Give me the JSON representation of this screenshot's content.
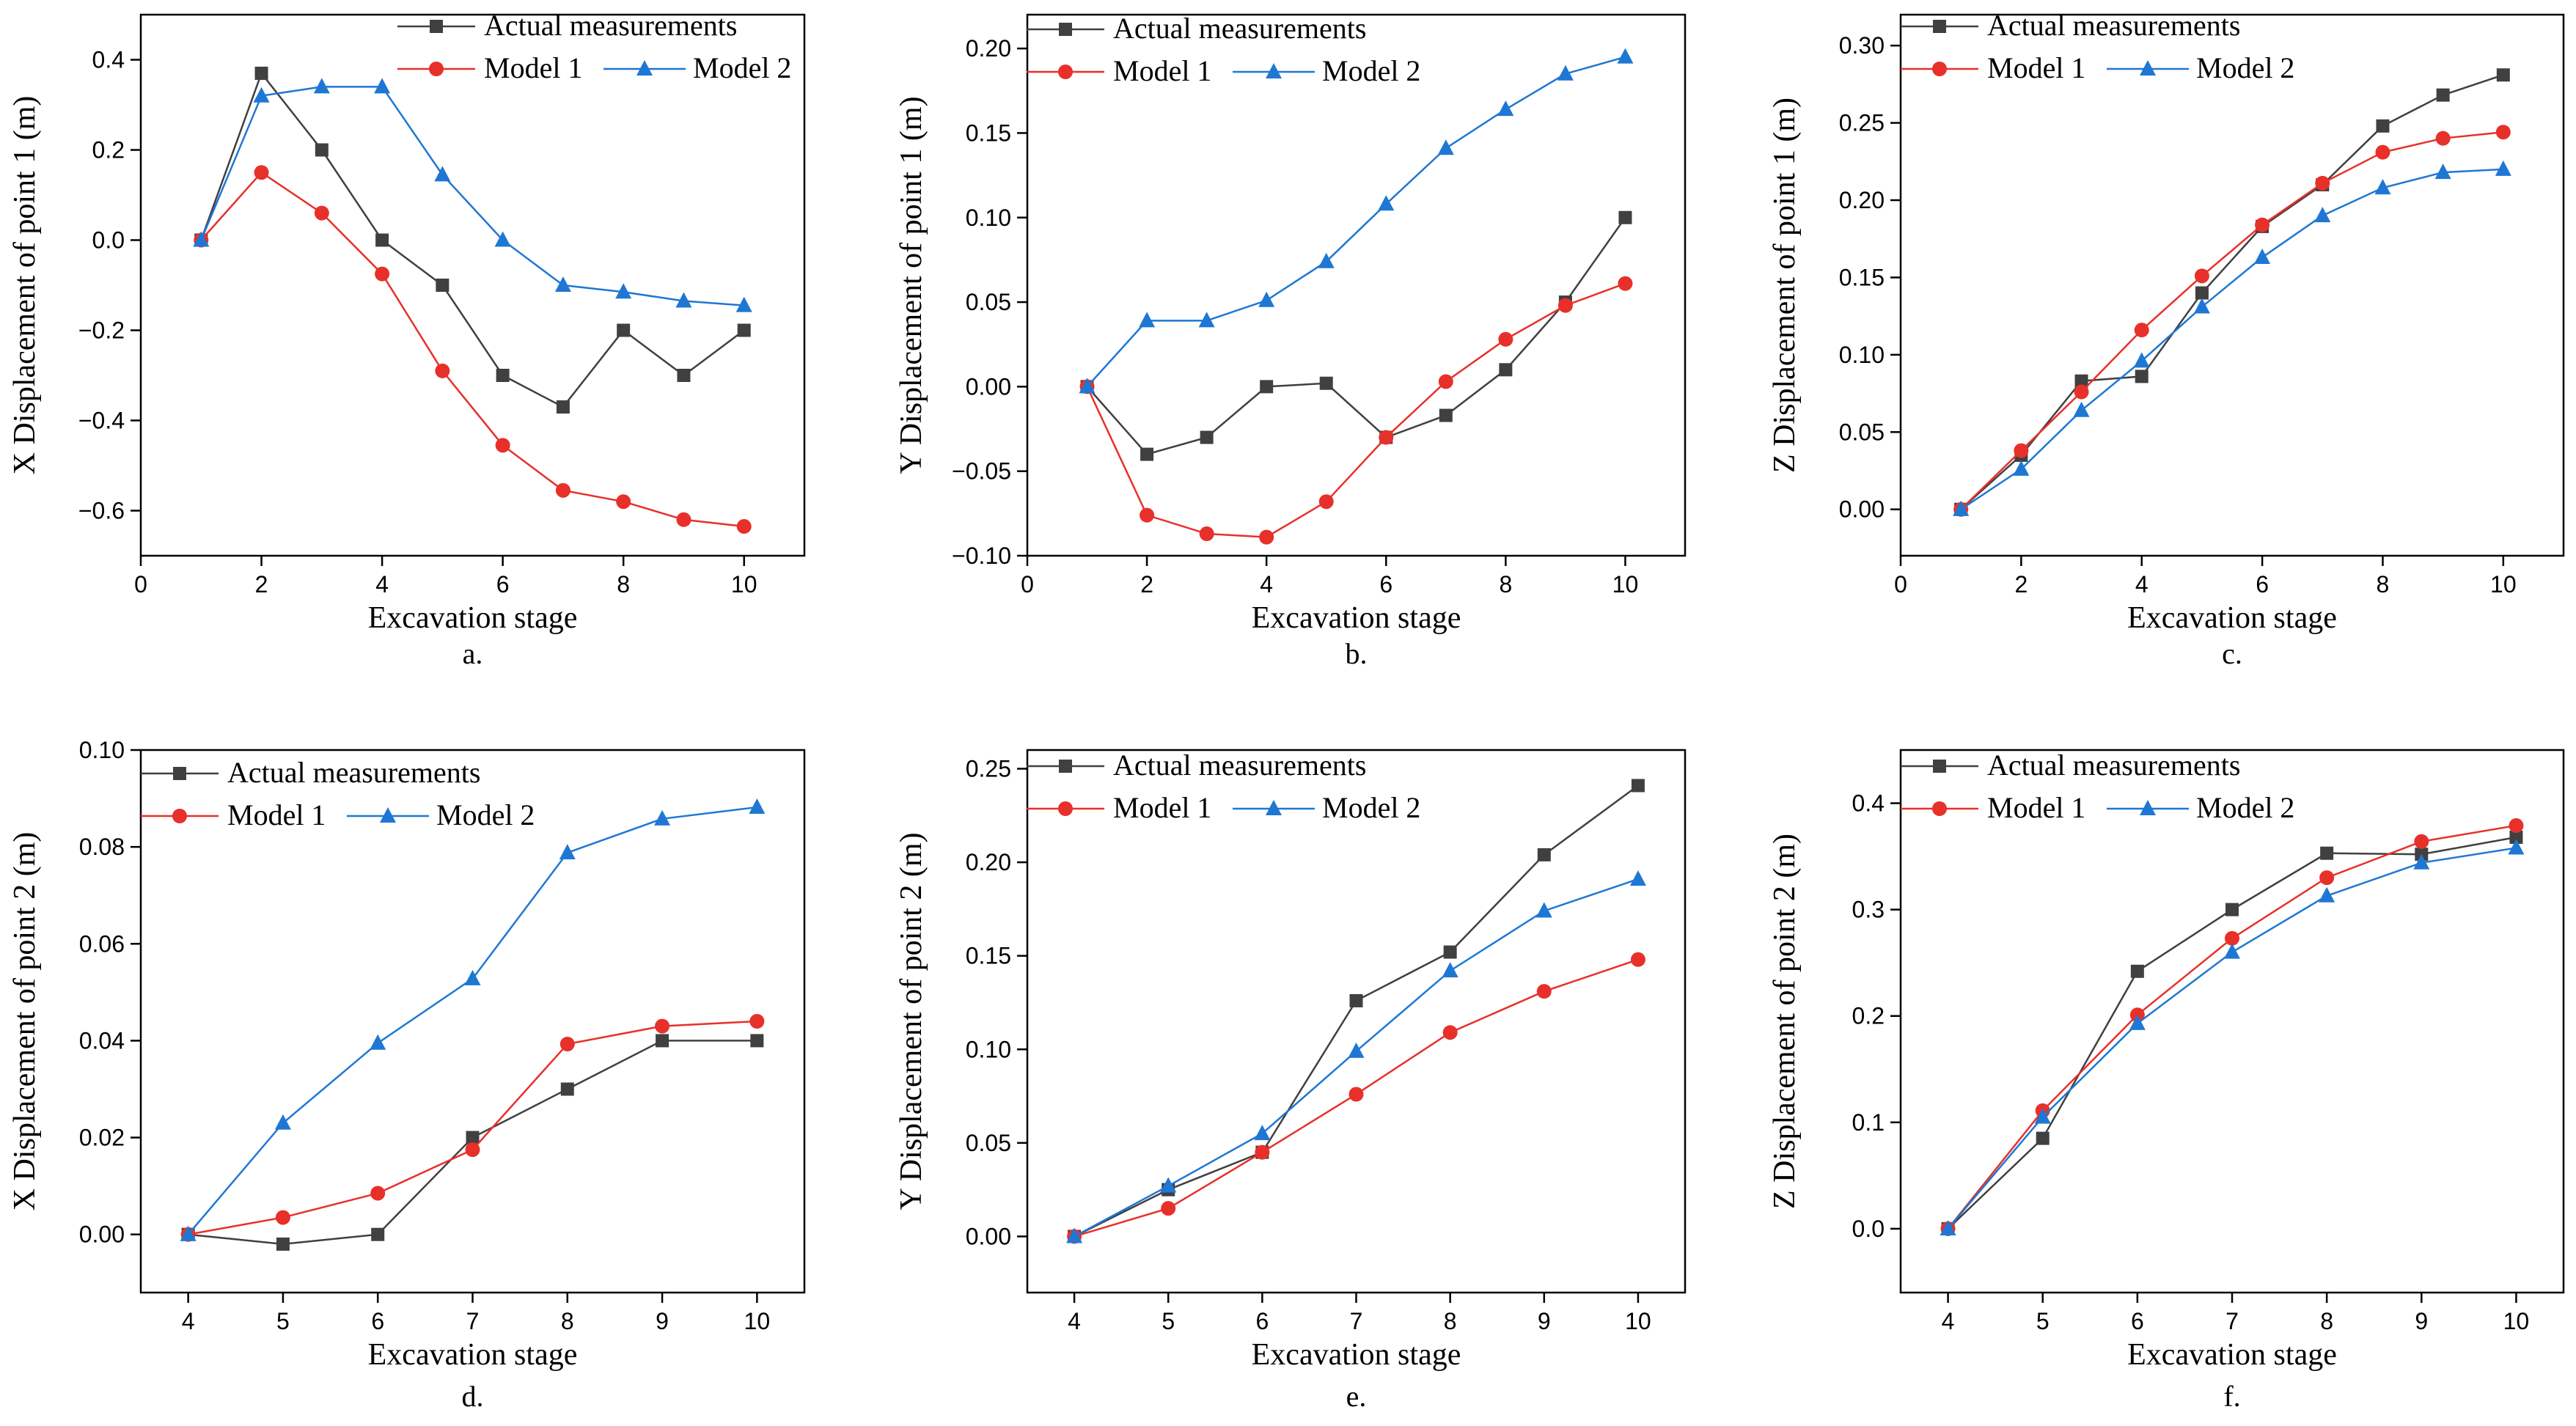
{
  "figure": {
    "panels": [
      {
        "id": "a",
        "caption": "a."
      },
      {
        "id": "b",
        "caption": "b."
      },
      {
        "id": "c",
        "caption": "c."
      },
      {
        "id": "d",
        "caption": "d."
      },
      {
        "id": "e",
        "caption": "e."
      },
      {
        "id": "f",
        "caption": "f."
      }
    ],
    "colors": {
      "actual": "#404040",
      "model1": "#e8302a",
      "model2": "#1f77d4"
    }
  },
  "chart_data": [
    {
      "type": "line",
      "xlabel": "Excavation stage",
      "ylabel": "X Displacement of point 1 (m)",
      "xlim": [
        0,
        11
      ],
      "ylim": [
        -0.7,
        0.5
      ],
      "xticks": [
        0,
        2,
        4,
        6,
        8,
        10
      ],
      "yticks": [
        -0.6,
        -0.4,
        -0.2,
        0.0,
        0.2,
        0.4
      ],
      "ytick_labels": [
        "−0.6",
        "−0.4",
        "−0.2",
        "0.0",
        "0.2",
        "0.4"
      ],
      "legend": "top-right",
      "x": [
        1,
        2,
        3,
        4,
        5,
        6,
        7,
        8,
        9,
        10
      ],
      "series": [
        {
          "name": "Actual measurements",
          "marker": "square",
          "values": [
            0.0,
            0.37,
            0.2,
            0.0,
            -0.1,
            -0.3,
            -0.37,
            -0.2,
            -0.3,
            -0.2
          ]
        },
        {
          "name": "Model 1",
          "marker": "circle",
          "values": [
            0.0,
            0.15,
            0.06,
            -0.075,
            -0.29,
            -0.455,
            -0.555,
            -0.58,
            -0.62,
            -0.635
          ]
        },
        {
          "name": "Model 2",
          "marker": "triangle",
          "values": [
            0.0,
            0.32,
            0.34,
            0.34,
            0.145,
            0.0,
            -0.1,
            -0.115,
            -0.135,
            -0.145
          ]
        }
      ]
    },
    {
      "type": "line",
      "xlabel": "Excavation stage",
      "ylabel": "Y Displacement of point 1 (m)",
      "xlim": [
        0,
        11
      ],
      "ylim": [
        -0.1,
        0.22
      ],
      "xticks": [
        0,
        2,
        4,
        6,
        8,
        10
      ],
      "yticks": [
        -0.1,
        -0.05,
        0.0,
        0.05,
        0.1,
        0.15,
        0.2
      ],
      "ytick_labels": [
        "−0.10",
        "−0.05",
        "0.00",
        "0.05",
        "0.10",
        "0.15",
        "0.20"
      ],
      "legend": "top-right",
      "x": [
        1,
        2,
        3,
        4,
        5,
        6,
        7,
        8,
        9,
        10
      ],
      "series": [
        {
          "name": "Actual measurements",
          "marker": "square",
          "values": [
            0.0,
            -0.04,
            -0.03,
            0.0,
            0.002,
            -0.03,
            -0.017,
            0.01,
            0.05,
            0.1
          ]
        },
        {
          "name": "Model 1",
          "marker": "circle",
          "values": [
            0.0,
            -0.076,
            -0.087,
            -0.089,
            -0.068,
            -0.03,
            0.003,
            0.028,
            0.048,
            0.061
          ]
        },
        {
          "name": "Model 2",
          "marker": "triangle",
          "values": [
            0.0,
            0.039,
            0.039,
            0.051,
            0.074,
            0.108,
            0.141,
            0.164,
            0.185,
            0.195
          ]
        }
      ]
    },
    {
      "type": "line",
      "xlabel": "Excavation stage",
      "ylabel": "Z Displacement of point 1 (m)",
      "xlim": [
        0,
        11
      ],
      "ylim": [
        -0.03,
        0.32
      ],
      "xticks": [
        0,
        2,
        4,
        6,
        8,
        10
      ],
      "yticks": [
        0.0,
        0.05,
        0.1,
        0.15,
        0.2,
        0.25,
        0.3
      ],
      "ytick_labels": [
        "0.00",
        "0.05",
        "0.10",
        "0.15",
        "0.20",
        "0.25",
        "0.30"
      ],
      "legend": "top-right",
      "x": [
        1,
        2,
        3,
        4,
        5,
        6,
        7,
        8,
        9,
        10
      ],
      "series": [
        {
          "name": "Actual measurements",
          "marker": "square",
          "values": [
            0.0,
            0.035,
            0.083,
            0.086,
            0.14,
            0.183,
            0.21,
            0.248,
            0.268,
            0.281
          ]
        },
        {
          "name": "Model 1",
          "marker": "circle",
          "values": [
            0.0,
            0.038,
            0.076,
            0.116,
            0.151,
            0.184,
            0.211,
            0.231,
            0.24,
            0.244
          ]
        },
        {
          "name": "Model 2",
          "marker": "triangle",
          "values": [
            0.0,
            0.026,
            0.064,
            0.096,
            0.131,
            0.163,
            0.19,
            0.208,
            0.218,
            0.22
          ]
        }
      ]
    },
    {
      "type": "line",
      "xlabel": "Excavation stage",
      "ylabel": "X Displacement of point 2 (m)",
      "xlim": [
        3.5,
        10.5
      ],
      "ylim": [
        -0.012,
        0.1
      ],
      "xticks": [
        4,
        5,
        6,
        7,
        8,
        9,
        10
      ],
      "yticks": [
        0.0,
        0.02,
        0.04,
        0.06,
        0.08,
        0.1
      ],
      "ytick_labels": [
        "0.00",
        "0.02",
        "0.04",
        "0.06",
        "0.08",
        "0.10"
      ],
      "legend": "top-left",
      "x": [
        4,
        5,
        6,
        7,
        8,
        9,
        10
      ],
      "series": [
        {
          "name": "Actual measurements",
          "marker": "square",
          "values": [
            0.0,
            -0.002,
            0.0,
            0.02,
            0.03,
            0.04,
            0.04
          ]
        },
        {
          "name": "Model 1",
          "marker": "circle",
          "values": [
            0.0,
            0.0035,
            0.0085,
            0.0175,
            0.0393,
            0.043,
            0.044
          ]
        },
        {
          "name": "Model 2",
          "marker": "triangle",
          "values": [
            0.0,
            0.023,
            0.0395,
            0.0528,
            0.0788,
            0.0858,
            0.0882
          ]
        }
      ]
    },
    {
      "type": "line",
      "xlabel": "Excavation stage",
      "ylabel": "Y Displacement of point 2 (m)",
      "xlim": [
        3.5,
        10.5
      ],
      "ylim": [
        -0.03,
        0.26
      ],
      "xticks": [
        4,
        5,
        6,
        7,
        8,
        9,
        10
      ],
      "yticks": [
        0.0,
        0.05,
        0.1,
        0.15,
        0.2,
        0.25
      ],
      "ytick_labels": [
        "0.00",
        "0.05",
        "0.10",
        "0.15",
        "0.20",
        "0.25"
      ],
      "legend": "top-left",
      "x": [
        4,
        5,
        6,
        7,
        8,
        9,
        10
      ],
      "series": [
        {
          "name": "Actual measurements",
          "marker": "square",
          "values": [
            0.0,
            0.025,
            0.045,
            0.126,
            0.152,
            0.204,
            0.241
          ]
        },
        {
          "name": "Model 1",
          "marker": "circle",
          "values": [
            0.0,
            0.015,
            0.045,
            0.076,
            0.109,
            0.131,
            0.148
          ]
        },
        {
          "name": "Model 2",
          "marker": "triangle",
          "values": [
            0.0,
            0.027,
            0.055,
            0.099,
            0.142,
            0.174,
            0.191
          ]
        }
      ]
    },
    {
      "type": "line",
      "xlabel": "Excavation stage",
      "ylabel": "Z Displacement of point 2 (m)",
      "xlim": [
        3.5,
        10.5
      ],
      "ylim": [
        -0.06,
        0.45
      ],
      "xticks": [
        4,
        5,
        6,
        7,
        8,
        9,
        10
      ],
      "yticks": [
        0.0,
        0.1,
        0.2,
        0.3,
        0.4
      ],
      "ytick_labels": [
        "0.0",
        "0.1",
        "0.2",
        "0.3",
        "0.4"
      ],
      "legend": "top-left",
      "x": [
        4,
        5,
        6,
        7,
        8,
        9,
        10
      ],
      "series": [
        {
          "name": "Actual measurements",
          "marker": "square",
          "values": [
            0.0,
            0.085,
            0.242,
            0.3,
            0.353,
            0.352,
            0.368
          ]
        },
        {
          "name": "Model 1",
          "marker": "circle",
          "values": [
            0.0,
            0.111,
            0.201,
            0.273,
            0.33,
            0.364,
            0.379
          ]
        },
        {
          "name": "Model 2",
          "marker": "triangle",
          "values": [
            0.0,
            0.105,
            0.193,
            0.26,
            0.313,
            0.344,
            0.358
          ]
        }
      ]
    }
  ]
}
